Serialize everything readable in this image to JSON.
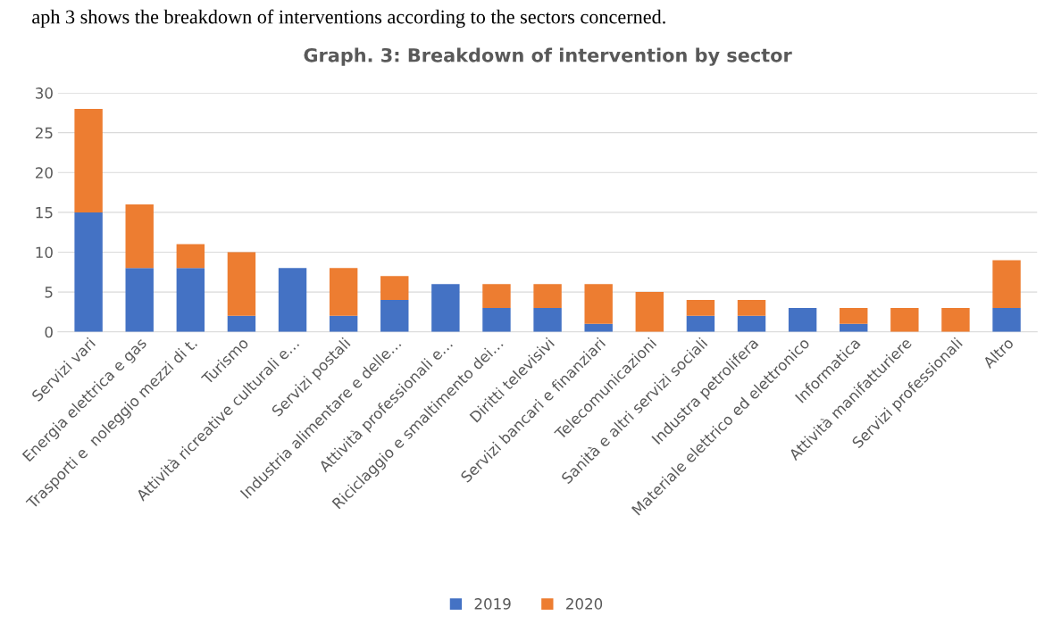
{
  "chart_data": {
    "type": "bar",
    "stacked": true,
    "title": "Graph. 3: Breakdown of intervention by sector",
    "annotations": [
      "aph 3 shows the breakdown of interventions according to the sectors concerned."
    ],
    "categories": [
      "Servizi vari",
      "Energia elettrica e gas",
      "Trasporti e  noleggio mezzi di t.",
      "Turismo",
      "Attività ricreative culturali e…",
      "Servizi postali",
      "Industria alimentare e delle…",
      "Attività professionali e…",
      "Riciclaggio e smaltimento dei…",
      "Diritti televisivi",
      "Servizi bancari e finanziari",
      "Telecomunicazioni",
      "Sanità e altri servizi sociali",
      "Industra petrolifera",
      "Materiale elettrico ed elettronico",
      "Informatica",
      "Attività manifatturiere",
      "Servizi professionali",
      "Altro"
    ],
    "series": [
      {
        "name": "2019",
        "color": "#4472c4",
        "values": [
          15,
          8,
          8,
          2,
          8,
          2,
          4,
          6,
          3,
          3,
          1,
          0,
          2,
          2,
          3,
          1,
          0,
          0,
          3
        ]
      },
      {
        "name": "2020",
        "color": "#ed7d31",
        "values": [
          13,
          8,
          3,
          8,
          0,
          6,
          3,
          0,
          3,
          3,
          5,
          5,
          2,
          2,
          0,
          2,
          3,
          3,
          6
        ]
      }
    ],
    "ylim": [
      0,
      30
    ],
    "yticks": [
      0,
      5,
      10,
      15,
      20,
      25,
      30
    ],
    "grid": "y",
    "legend": "bottom"
  }
}
